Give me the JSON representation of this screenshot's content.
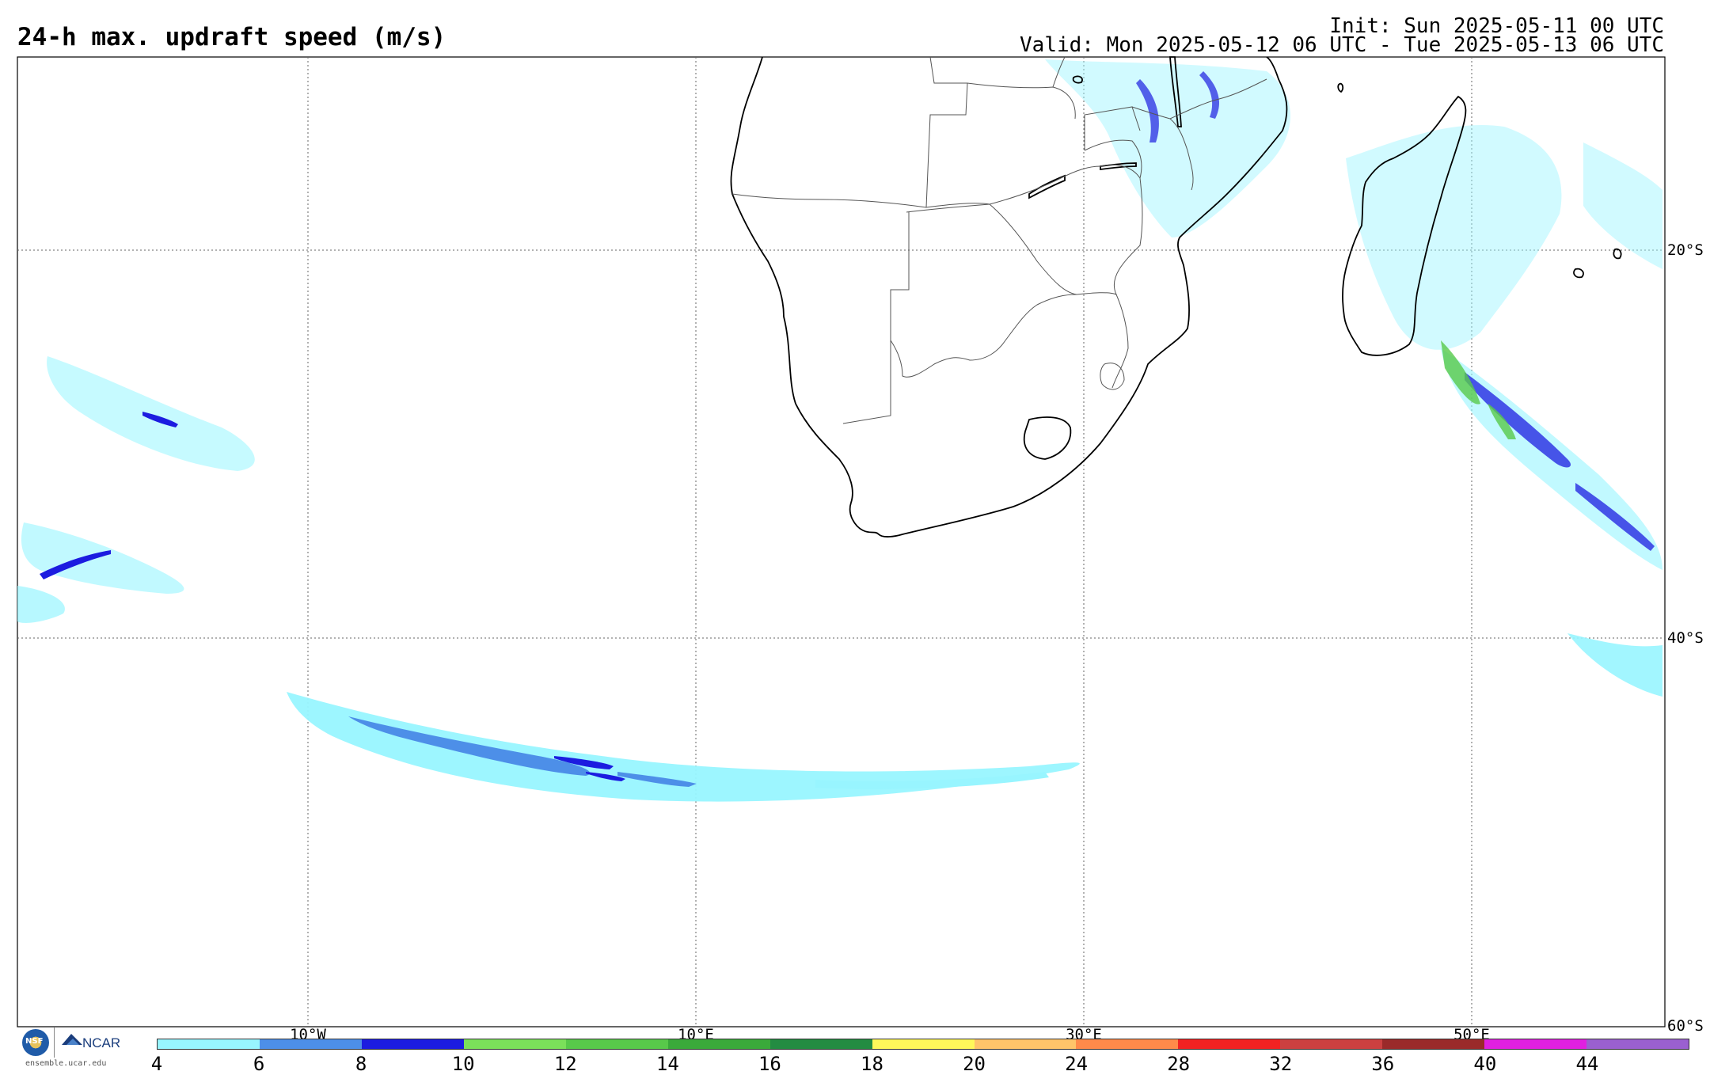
{
  "header": {
    "title": "24-h max. updraft speed (m/s)",
    "init": "Init: Sun 2025-05-11 00 UTC",
    "valid": "Valid: Mon 2025-05-12 06 UTC - Tue 2025-05-13 06 UTC"
  },
  "map": {
    "lat_labels": [
      "20°S",
      "40°S",
      "60°S"
    ],
    "lon_labels": [
      "10°W",
      "10°E",
      "30°E",
      "50°E"
    ],
    "gridline_style": "dotted",
    "coastline_color": "#000000",
    "border_color": "#555555"
  },
  "legend": {
    "ticks": [
      "4",
      "6",
      "8",
      "10",
      "12",
      "14",
      "16",
      "18",
      "20",
      "24",
      "28",
      "32",
      "36",
      "40",
      "44"
    ],
    "colors": [
      "#98f5ff",
      "#4d8fe8",
      "#1c1ce0",
      "#7be05a",
      "#58c94a",
      "#3aaa3a",
      "#238c42",
      "#fff85a",
      "#ffc46a",
      "#ff8a4a",
      "#f22222",
      "#cc4040",
      "#9a2a2a",
      "#e020e0",
      "#9a60d0"
    ]
  },
  "credits": {
    "nsf": "NSF",
    "ncar": "NCAR",
    "site": "ensemble.ucar.edu"
  }
}
